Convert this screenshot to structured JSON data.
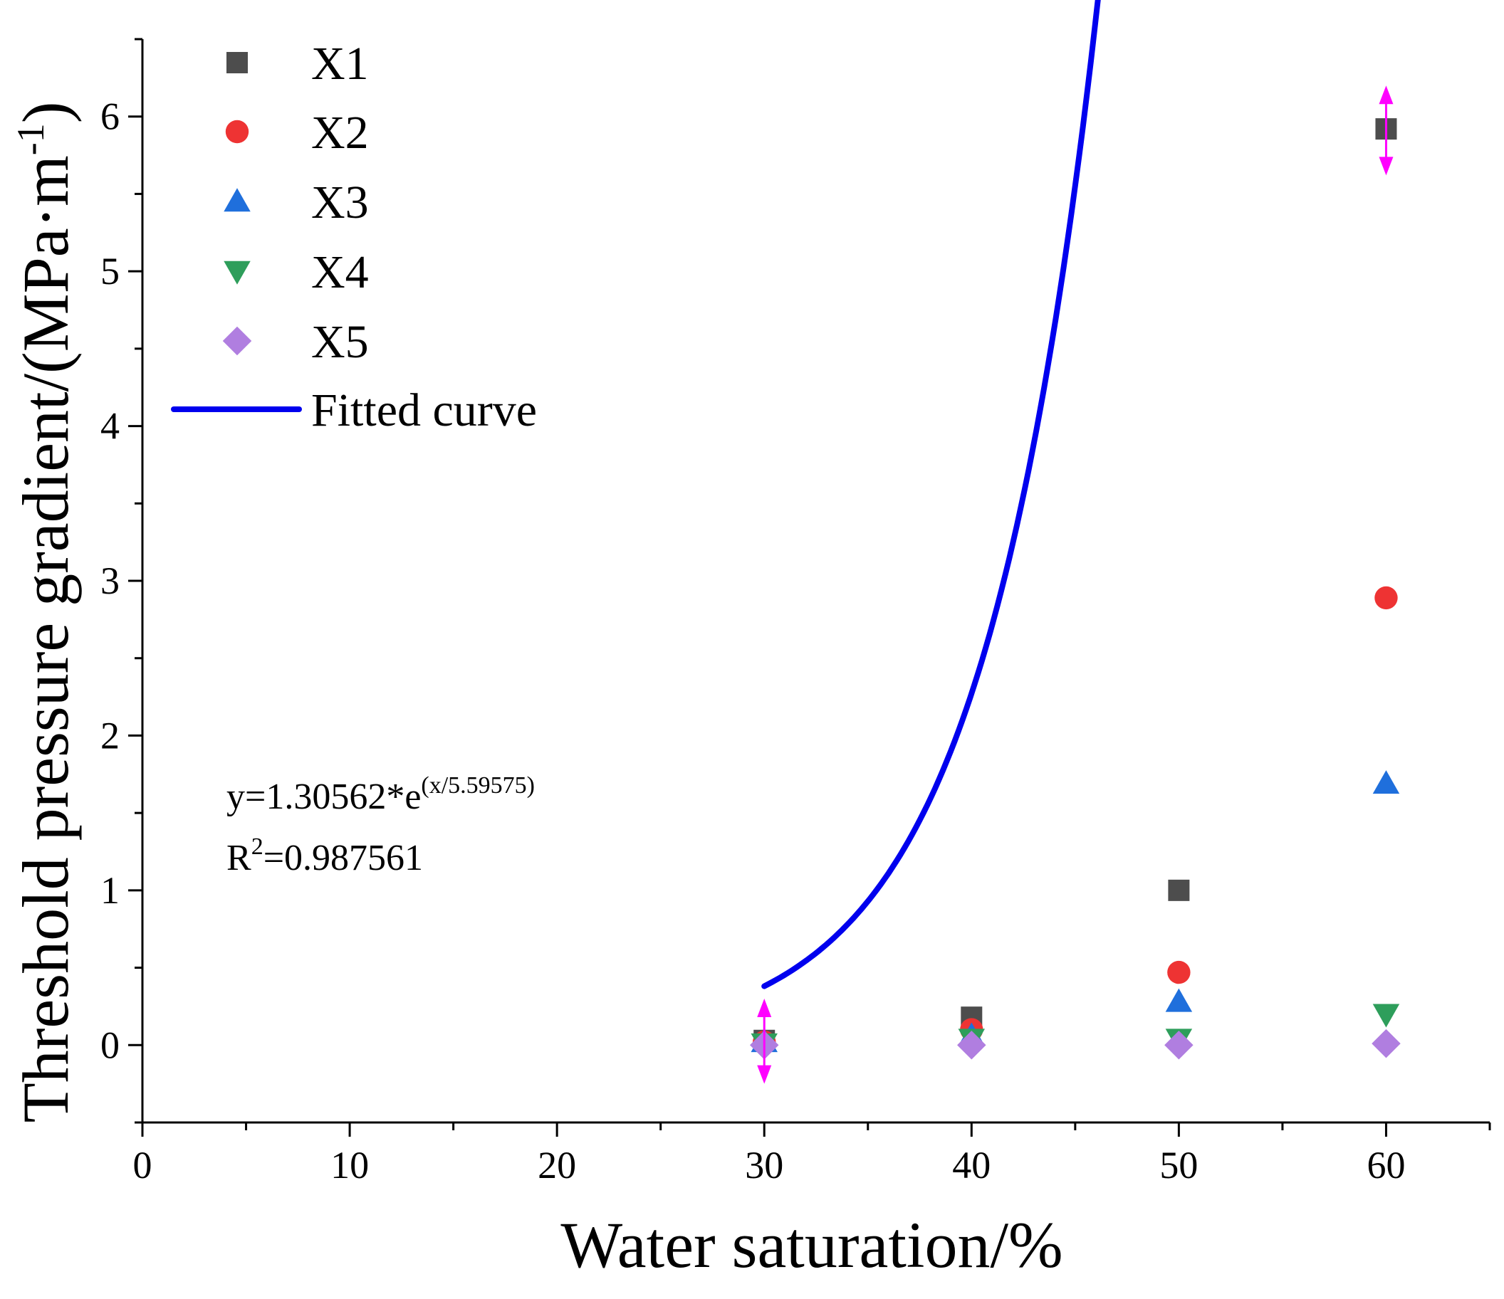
{
  "chart_data": {
    "type": "scatter",
    "xlabel": "Water saturation/%",
    "ylabel": {
      "main": "Threshold pressure gradient/(MPa·m",
      "sup": "-1",
      "close": ")"
    },
    "xlim": [
      0,
      65
    ],
    "ylim": [
      -0.5,
      6.5
    ],
    "x_ticks": [
      0,
      10,
      20,
      30,
      40,
      50,
      60
    ],
    "y_ticks": [
      0,
      1,
      2,
      3,
      4,
      5,
      6
    ],
    "legend_position": "top-left",
    "series": [
      {
        "name": "X1",
        "marker": "square",
        "color": "#4d4d4d",
        "x": [
          30,
          40,
          50,
          60
        ],
        "y": [
          0.03,
          0.18,
          1.0,
          5.92
        ]
      },
      {
        "name": "X2",
        "marker": "circle",
        "color": "#ee3333",
        "x": [
          30,
          40,
          50,
          60
        ],
        "y": [
          0.02,
          0.1,
          0.47,
          2.89
        ]
      },
      {
        "name": "X3",
        "marker": "triangle-up",
        "color": "#1f6fdc",
        "x": [
          30,
          40,
          50,
          60
        ],
        "y": [
          0.02,
          0.06,
          0.28,
          1.69
        ]
      },
      {
        "name": "X4",
        "marker": "triangle-down",
        "color": "#2e9e5b",
        "x": [
          30,
          40,
          50,
          60
        ],
        "y": [
          0.01,
          0.04,
          0.04,
          0.2
        ]
      },
      {
        "name": "X5",
        "marker": "diamond",
        "color": "#b07ee0",
        "x": [
          30,
          40,
          50,
          60
        ],
        "y": [
          0.0,
          0.0,
          0.0,
          0.01
        ]
      }
    ],
    "fit": {
      "name": "Fitted curve",
      "color": "#0000ee",
      "a": 1.30562,
      "b": 5.59575,
      "offset": 36.9,
      "x_range": [
        30,
        60
      ],
      "equation_main": "y=1.30562*e",
      "equation_sup": "(x/5.59575)",
      "r2_main": "R",
      "r2_sup": "2",
      "r2_value": "=0.987561"
    },
    "error_bar_color": "#ff00ff",
    "error_bars": [
      {
        "x": 30,
        "y_low": -0.25,
        "y_high": 0.3
      },
      {
        "x": 60,
        "y_low": 5.62,
        "y_high": 6.2
      }
    ]
  }
}
